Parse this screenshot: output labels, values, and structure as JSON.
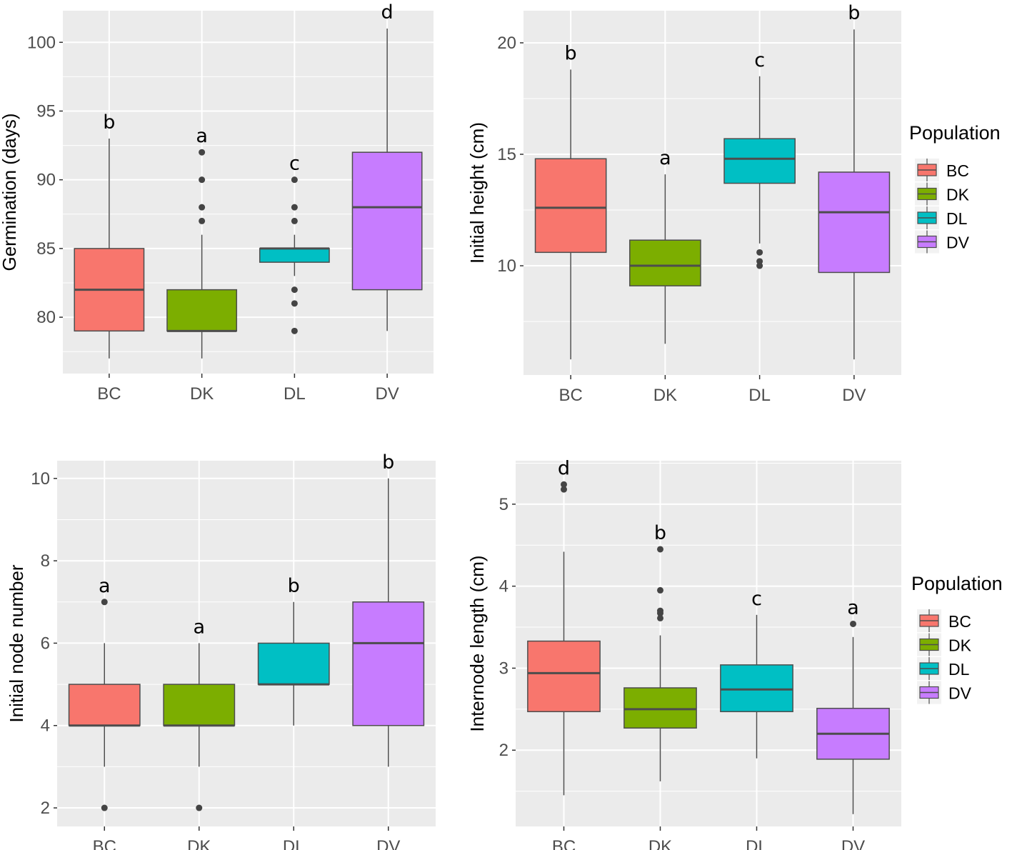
{
  "colors": {
    "BC": "#F8766D",
    "DK": "#7CAE00",
    "DL": "#00BFC4",
    "DV": "#C77CFF",
    "panel_bg": "#EBEBEB",
    "outline": "#4d4d4d"
  },
  "chart_data": [
    {
      "type": "boxplot",
      "ylabel": "Germination (days)",
      "ylim": [
        75.9,
        102.3
      ],
      "yticks": [
        80,
        85,
        90,
        95,
        100
      ],
      "categories": [
        "BC",
        "DK",
        "DL",
        "DV"
      ],
      "grid": true,
      "legend": null,
      "boxes": [
        {
          "cat": "BC",
          "lower": 77,
          "q1": 79,
          "median": 82,
          "q3": 85,
          "upper": 93,
          "outliers": [],
          "letter": "b"
        },
        {
          "cat": "DK",
          "lower": 77,
          "q1": 79,
          "median": 79,
          "q3": 82,
          "upper": 86,
          "outliers": [
            92,
            90,
            88,
            87
          ],
          "letter": "a"
        },
        {
          "cat": "DL",
          "lower": 83,
          "q1": 84,
          "median": 85,
          "q3": 85,
          "upper": 86,
          "outliers": [
            90,
            88,
            87,
            82,
            81,
            79
          ],
          "letter": "c"
        },
        {
          "cat": "DV",
          "lower": 79,
          "q1": 82,
          "median": 88,
          "q3": 92,
          "upper": 101,
          "outliers": [],
          "letter": "d"
        }
      ]
    },
    {
      "type": "boxplot",
      "ylabel": "Initial height (cm)",
      "ylim": [
        5.1,
        21.44
      ],
      "yticks": [
        10,
        15,
        20
      ],
      "categories": [
        "BC",
        "DK",
        "DL",
        "DV"
      ],
      "grid": true,
      "legend": {
        "title": "Population",
        "items": [
          "BC",
          "DK",
          "DL",
          "DV"
        ],
        "position": "right"
      },
      "boxes": [
        {
          "cat": "BC",
          "lower": 5.8,
          "q1": 10.6,
          "median": 12.6,
          "q3": 14.8,
          "upper": 18.8,
          "outliers": [],
          "letter": "b"
        },
        {
          "cat": "DK",
          "lower": 6.5,
          "q1": 9.1,
          "median": 10.0,
          "q3": 11.15,
          "upper": 14.1,
          "outliers": [],
          "letter": "a"
        },
        {
          "cat": "DL",
          "lower": 11.0,
          "q1": 13.7,
          "median": 14.8,
          "q3": 15.7,
          "upper": 18.5,
          "outliers": [
            10.6,
            10.2,
            10.0
          ],
          "letter": "c"
        },
        {
          "cat": "DV",
          "lower": 5.8,
          "q1": 9.7,
          "median": 12.4,
          "q3": 14.2,
          "upper": 20.6,
          "outliers": [],
          "letter": "b"
        }
      ]
    },
    {
      "type": "boxplot",
      "ylabel": "Initial node number",
      "ylim": [
        1.55,
        10.43
      ],
      "yticks": [
        2,
        4,
        6,
        8,
        10
      ],
      "categories": [
        "BC",
        "DK",
        "DL",
        "DV"
      ],
      "grid": true,
      "legend": null,
      "boxes": [
        {
          "cat": "BC",
          "lower": 3,
          "q1": 4,
          "median": 4,
          "q3": 5,
          "upper": 6,
          "outliers": [
            7,
            2
          ],
          "letter": "a"
        },
        {
          "cat": "DK",
          "lower": 3,
          "q1": 4,
          "median": 4,
          "q3": 5,
          "upper": 6,
          "outliers": [
            2
          ],
          "letter": "a"
        },
        {
          "cat": "DL",
          "lower": 4,
          "q1": 5,
          "median": 5,
          "q3": 6,
          "upper": 7,
          "outliers": [],
          "letter": "b"
        },
        {
          "cat": "DV",
          "lower": 3,
          "q1": 4,
          "median": 6,
          "q3": 7,
          "upper": 10,
          "outliers": [],
          "letter": "b"
        }
      ]
    },
    {
      "type": "boxplot",
      "ylabel": "Internode length (cm)",
      "ylim": [
        1.07,
        5.53
      ],
      "yticks": [
        2,
        3,
        4,
        5
      ],
      "categories": [
        "BC",
        "DK",
        "DL",
        "DV"
      ],
      "grid": true,
      "legend": {
        "title": "Population",
        "items": [
          "BC",
          "DK",
          "DL",
          "DV"
        ],
        "position": "right"
      },
      "boxes": [
        {
          "cat": "BC",
          "lower": 1.45,
          "q1": 2.47,
          "median": 2.94,
          "q3": 3.33,
          "upper": 4.42,
          "outliers": [
            5.24,
            5.18
          ],
          "letter": "d"
        },
        {
          "cat": "DK",
          "lower": 1.62,
          "q1": 2.27,
          "median": 2.5,
          "q3": 2.76,
          "upper": 3.4,
          "outliers": [
            4.45,
            3.95,
            3.7,
            3.67,
            3.61
          ],
          "letter": "b"
        },
        {
          "cat": "DL",
          "lower": 1.9,
          "q1": 2.47,
          "median": 2.74,
          "q3": 3.04,
          "upper": 3.65,
          "outliers": [],
          "letter": "c"
        },
        {
          "cat": "DV",
          "lower": 1.22,
          "q1": 1.89,
          "median": 2.2,
          "q3": 2.51,
          "upper": 3.38,
          "outliers": [
            3.54
          ],
          "letter": "a"
        }
      ]
    }
  ]
}
